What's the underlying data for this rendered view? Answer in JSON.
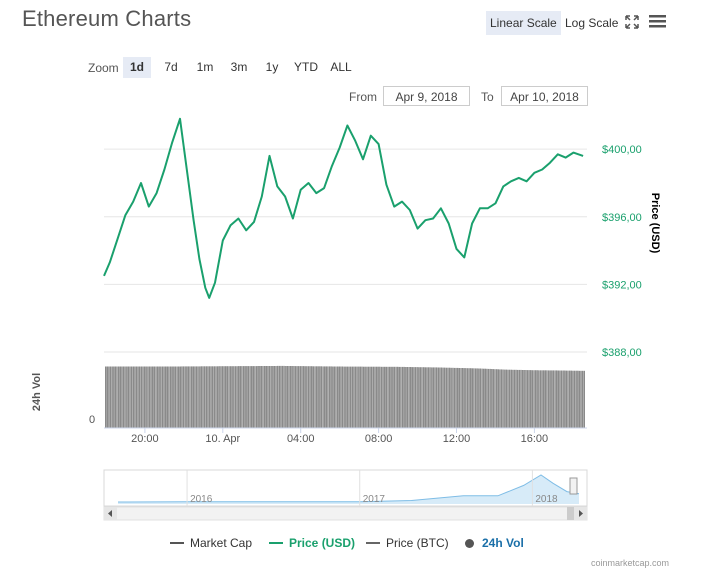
{
  "title": "Ethereum Charts",
  "scale_buttons": {
    "linear": "Linear Scale",
    "log": "Log Scale"
  },
  "icons": {
    "fullscreen": "fullscreen-icon",
    "menu": "menu-icon"
  },
  "zoom": {
    "label": "Zoom",
    "options": [
      "1d",
      "7d",
      "1m",
      "3m",
      "1y",
      "YTD",
      "ALL"
    ],
    "selected": "1d"
  },
  "range": {
    "from_label": "From",
    "from_value": "Apr 9, 2018",
    "to_label": "To",
    "to_value": "Apr 10, 2018"
  },
  "legend": [
    {
      "name": "Market Cap",
      "color": "#555555",
      "symbol": "line",
      "active": false
    },
    {
      "name": "Price (USD)",
      "color": "#1aa06d",
      "symbol": "line",
      "active": true
    },
    {
      "name": "Price (BTC)",
      "color": "#666666",
      "symbol": "line",
      "active": false
    },
    {
      "name": "24h Vol",
      "color": "#555555",
      "symbol": "dot",
      "active": true
    }
  ],
  "credits": "coinmarketcap.com",
  "colors": {
    "price": "#1aa06d",
    "volume": "#888888",
    "accent": "#e6ebf5",
    "navigator": "#7fbde6"
  },
  "chart_data": {
    "type": "line",
    "x_ticks": [
      "20:00",
      "10. Apr",
      "04:00",
      "08:00",
      "12:00",
      "16:00"
    ],
    "x_tick_hours": [
      20,
      24,
      28,
      32,
      36,
      40
    ],
    "x_range_hours": [
      17.9,
      42.7
    ],
    "price_axis": {
      "label": "Price (USD)",
      "ticks": [
        "$400,00",
        "$396,00",
        "$392,00",
        "$388,00"
      ],
      "tick_values": [
        400,
        396,
        392,
        388
      ],
      "range": [
        388,
        402.2
      ],
      "gridlines": true
    },
    "volume_axis": {
      "label": "24h Vol",
      "ticks": [
        "0"
      ],
      "tick_values": [
        0
      ]
    },
    "series": [
      {
        "name": "Price (USD)",
        "x_hours": [
          17.9,
          18.2,
          18.6,
          19.0,
          19.4,
          19.8,
          20.2,
          20.6,
          21.0,
          21.4,
          21.8,
          22.2,
          22.5,
          22.8,
          23.1,
          23.3,
          23.6,
          24.0,
          24.4,
          24.8,
          25.2,
          25.6,
          26.0,
          26.4,
          26.8,
          27.2,
          27.6,
          28.0,
          28.4,
          28.8,
          29.2,
          29.6,
          30.0,
          30.4,
          30.8,
          31.2,
          31.6,
          32.0,
          32.4,
          32.8,
          33.2,
          33.6,
          34.0,
          34.4,
          34.8,
          35.2,
          35.6,
          36.0,
          36.4,
          36.8,
          37.2,
          37.6,
          38.0,
          38.4,
          38.8,
          39.2,
          39.6,
          40.0,
          40.4,
          40.8,
          41.2,
          41.6,
          42.0,
          42.5
        ],
        "values": [
          392.5,
          393.3,
          394.7,
          396.1,
          396.9,
          398.0,
          396.6,
          397.4,
          398.8,
          400.4,
          401.8,
          398.4,
          395.8,
          393.5,
          391.8,
          391.2,
          392.1,
          394.6,
          395.5,
          395.9,
          395.2,
          395.7,
          397.2,
          399.6,
          397.8,
          397.2,
          395.9,
          397.6,
          398.0,
          397.4,
          397.7,
          399.0,
          400.1,
          401.4,
          400.5,
          399.4,
          400.8,
          400.3,
          397.9,
          396.6,
          396.9,
          396.4,
          395.3,
          395.8,
          395.9,
          396.5,
          395.6,
          394.1,
          393.6,
          395.6,
          396.5,
          396.5,
          396.8,
          397.8,
          398.1,
          398.3,
          398.1,
          398.6,
          398.8,
          399.2,
          399.7,
          399.5,
          399.8,
          399.6
        ]
      },
      {
        "name": "24h Vol",
        "x_hours": [
          17.9,
          21.0,
          24.0,
          27.0,
          30.0,
          33.0,
          35.0,
          37.0,
          38.5,
          40.0,
          41.5,
          42.5
        ],
        "values": [
          1.0,
          1.0,
          1.005,
          1.01,
          1.0,
          0.995,
          0.985,
          0.97,
          0.95,
          0.94,
          0.935,
          0.93
        ]
      }
    ],
    "navigator": {
      "labels": [
        "2016",
        "2017",
        "2018"
      ],
      "x_years": [
        2015.6,
        2016.0,
        2016.5,
        2017.0,
        2017.3,
        2017.6,
        2017.8,
        2017.95,
        2018.05,
        2018.12,
        2018.2,
        2018.27
      ],
      "values": [
        1,
        10,
        14,
        10,
        70,
        300,
        300,
        800,
        1300,
        900,
        500,
        400
      ]
    }
  }
}
